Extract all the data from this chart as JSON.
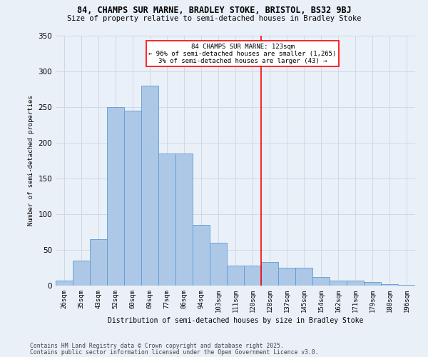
{
  "title": "84, CHAMPS SUR MARNE, BRADLEY STOKE, BRISTOL, BS32 9BJ",
  "subtitle": "Size of property relative to semi-detached houses in Bradley Stoke",
  "xlabel": "Distribution of semi-detached houses by size in Bradley Stoke",
  "ylabel": "Number of semi-detached properties",
  "bin_labels": [
    "26sqm",
    "35sqm",
    "43sqm",
    "52sqm",
    "60sqm",
    "69sqm",
    "77sqm",
    "86sqm",
    "94sqm",
    "103sqm",
    "111sqm",
    "120sqm",
    "128sqm",
    "137sqm",
    "145sqm",
    "154sqm",
    "162sqm",
    "171sqm",
    "179sqm",
    "188sqm",
    "196sqm"
  ],
  "bar_heights": [
    7,
    35,
    65,
    250,
    245,
    280,
    185,
    185,
    85,
    60,
    28,
    28,
    33,
    25,
    25,
    12,
    7,
    7,
    5,
    2,
    1
  ],
  "bar_color": "#adc8e6",
  "bar_edge_color": "#5b9bd5",
  "grid_color": "#d0d8e8",
  "bg_color": "#eaf0f8",
  "vline_color": "red",
  "box_text_line1": "84 CHAMPS SUR MARNE: 123sqm",
  "box_text_line2": "← 96% of semi-detached houses are smaller (1,265)",
  "box_text_line3": "3% of semi-detached houses are larger (43) →",
  "ylim": [
    0,
    350
  ],
  "yticks": [
    0,
    50,
    100,
    150,
    200,
    250,
    300,
    350
  ],
  "footnote1": "Contains HM Land Registry data © Crown copyright and database right 2025.",
  "footnote2": "Contains public sector information licensed under the Open Government Licence v3.0."
}
